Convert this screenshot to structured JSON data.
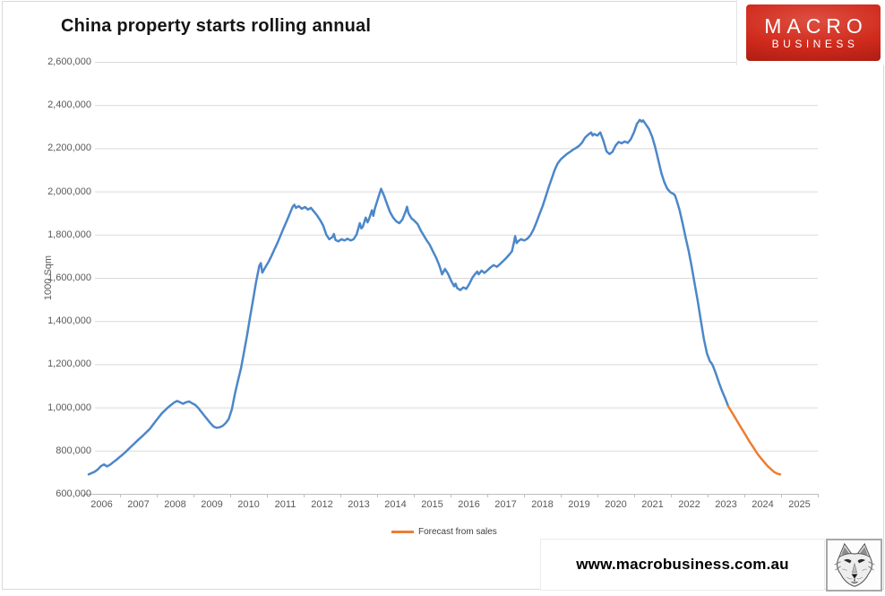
{
  "title": "China property starts rolling annual",
  "logo": {
    "line1": "MACRO",
    "line2": "BUSINESS",
    "bg_color": "#d02a1c"
  },
  "footer": {
    "url": "www.macrobusiness.com.au",
    "wolf_logo": "wolf-head-sketch"
  },
  "legend": {
    "label": "Forecast from sales",
    "color": "#ED7D31"
  },
  "colors": {
    "actual_line": "#4C87C9",
    "forecast_line": "#ED7D31",
    "gridline": "#d9d9d9",
    "axis_line": "#bfbfbf",
    "tick_text": "#595959",
    "logo_red": "#d02a1c"
  },
  "chart_data": {
    "type": "line",
    "title": "China property starts rolling annual",
    "xlabel": "",
    "ylabel": "1000 Sqm",
    "ylim": [
      600000,
      2600000
    ],
    "xlim": [
      2006,
      2025
    ],
    "grid": true,
    "legend_position": "bottom-center",
    "y_ticks": [
      600000,
      800000,
      1000000,
      1200000,
      1400000,
      1600000,
      1800000,
      2000000,
      2200000,
      2400000,
      2600000
    ],
    "x_ticks": [
      "2006",
      "2007",
      "2008",
      "2009",
      "2010",
      "2011",
      "2012",
      "2013",
      "2014",
      "2015",
      "2016",
      "2017",
      "2018",
      "2019",
      "2020",
      "2021",
      "2022",
      "2023",
      "2024",
      "2025"
    ],
    "series": [
      {
        "name": "China property starts rolling annual (actual)",
        "color": "#4C87C9",
        "points": [
          [
            2006.0,
            690000
          ],
          [
            2006.08,
            696000
          ],
          [
            2006.17,
            703000
          ],
          [
            2006.25,
            713000
          ],
          [
            2006.33,
            728000
          ],
          [
            2006.42,
            736000
          ],
          [
            2006.5,
            727000
          ],
          [
            2006.58,
            734000
          ],
          [
            2006.67,
            746000
          ],
          [
            2006.75,
            756000
          ],
          [
            2006.83,
            768000
          ],
          [
            2006.92,
            780000
          ],
          [
            2007.0,
            792000
          ],
          [
            2007.17,
            820000
          ],
          [
            2007.33,
            846000
          ],
          [
            2007.5,
            872000
          ],
          [
            2007.67,
            900000
          ],
          [
            2007.83,
            936000
          ],
          [
            2008.0,
            972000
          ],
          [
            2008.17,
            1000000
          ],
          [
            2008.33,
            1022000
          ],
          [
            2008.42,
            1030000
          ],
          [
            2008.5,
            1024000
          ],
          [
            2008.58,
            1017000
          ],
          [
            2008.67,
            1024000
          ],
          [
            2008.75,
            1028000
          ],
          [
            2008.83,
            1019000
          ],
          [
            2008.92,
            1011000
          ],
          [
            2009.0,
            997000
          ],
          [
            2009.17,
            961000
          ],
          [
            2009.33,
            927000
          ],
          [
            2009.42,
            911000
          ],
          [
            2009.5,
            906000
          ],
          [
            2009.58,
            908000
          ],
          [
            2009.67,
            915000
          ],
          [
            2009.75,
            928000
          ],
          [
            2009.83,
            946000
          ],
          [
            2009.92,
            992000
          ],
          [
            2010.0,
            1062000
          ],
          [
            2010.08,
            1121000
          ],
          [
            2010.17,
            1182000
          ],
          [
            2010.25,
            1256000
          ],
          [
            2010.33,
            1331000
          ],
          [
            2010.42,
            1421000
          ],
          [
            2010.5,
            1500000
          ],
          [
            2010.58,
            1581000
          ],
          [
            2010.67,
            1656000
          ],
          [
            2010.71,
            1668000
          ],
          [
            2010.75,
            1624000
          ],
          [
            2010.83,
            1648000
          ],
          [
            2010.92,
            1673000
          ],
          [
            2011.0,
            1701000
          ],
          [
            2011.08,
            1731000
          ],
          [
            2011.17,
            1763000
          ],
          [
            2011.25,
            1796000
          ],
          [
            2011.33,
            1829000
          ],
          [
            2011.42,
            1863000
          ],
          [
            2011.5,
            1896000
          ],
          [
            2011.58,
            1929000
          ],
          [
            2011.63,
            1938000
          ],
          [
            2011.67,
            1924000
          ],
          [
            2011.75,
            1932000
          ],
          [
            2011.83,
            1920000
          ],
          [
            2011.92,
            1928000
          ],
          [
            2012.0,
            1916000
          ],
          [
            2012.08,
            1924000
          ],
          [
            2012.17,
            1906000
          ],
          [
            2012.25,
            1889000
          ],
          [
            2012.33,
            1868000
          ],
          [
            2012.42,
            1841000
          ],
          [
            2012.5,
            1801000
          ],
          [
            2012.58,
            1779000
          ],
          [
            2012.67,
            1789000
          ],
          [
            2012.71,
            1803000
          ],
          [
            2012.75,
            1776000
          ],
          [
            2012.83,
            1769000
          ],
          [
            2012.92,
            1779000
          ],
          [
            2013.0,
            1773000
          ],
          [
            2013.08,
            1781000
          ],
          [
            2013.17,
            1773000
          ],
          [
            2013.25,
            1779000
          ],
          [
            2013.33,
            1801000
          ],
          [
            2013.42,
            1853000
          ],
          [
            2013.46,
            1829000
          ],
          [
            2013.5,
            1836000
          ],
          [
            2013.58,
            1879000
          ],
          [
            2013.63,
            1857000
          ],
          [
            2013.67,
            1871000
          ],
          [
            2013.75,
            1913000
          ],
          [
            2013.79,
            1887000
          ],
          [
            2013.83,
            1921000
          ],
          [
            2013.92,
            1969000
          ],
          [
            2014.0,
            2012000
          ],
          [
            2014.08,
            1981000
          ],
          [
            2014.17,
            1939000
          ],
          [
            2014.25,
            1903000
          ],
          [
            2014.33,
            1879000
          ],
          [
            2014.42,
            1861000
          ],
          [
            2014.5,
            1853000
          ],
          [
            2014.58,
            1869000
          ],
          [
            2014.67,
            1906000
          ],
          [
            2014.71,
            1929000
          ],
          [
            2014.75,
            1899000
          ],
          [
            2014.83,
            1876000
          ],
          [
            2014.92,
            1863000
          ],
          [
            2015.0,
            1849000
          ],
          [
            2015.08,
            1821000
          ],
          [
            2015.17,
            1796000
          ],
          [
            2015.25,
            1773000
          ],
          [
            2015.33,
            1753000
          ],
          [
            2015.42,
            1723000
          ],
          [
            2015.5,
            1696000
          ],
          [
            2015.58,
            1663000
          ],
          [
            2015.63,
            1639000
          ],
          [
            2015.67,
            1616000
          ],
          [
            2015.71,
            1629000
          ],
          [
            2015.75,
            1641000
          ],
          [
            2015.83,
            1619000
          ],
          [
            2015.92,
            1586000
          ],
          [
            2016.0,
            1561000
          ],
          [
            2016.04,
            1573000
          ],
          [
            2016.08,
            1553000
          ],
          [
            2016.17,
            1543000
          ],
          [
            2016.25,
            1556000
          ],
          [
            2016.33,
            1549000
          ],
          [
            2016.42,
            1573000
          ],
          [
            2016.5,
            1601000
          ],
          [
            2016.58,
            1619000
          ],
          [
            2016.63,
            1629000
          ],
          [
            2016.67,
            1616000
          ],
          [
            2016.75,
            1633000
          ],
          [
            2016.83,
            1623000
          ],
          [
            2016.92,
            1636000
          ],
          [
            2017.0,
            1649000
          ],
          [
            2017.08,
            1659000
          ],
          [
            2017.17,
            1651000
          ],
          [
            2017.25,
            1663000
          ],
          [
            2017.33,
            1676000
          ],
          [
            2017.42,
            1691000
          ],
          [
            2017.5,
            1706000
          ],
          [
            2017.58,
            1723000
          ],
          [
            2017.63,
            1759000
          ],
          [
            2017.67,
            1793000
          ],
          [
            2017.71,
            1761000
          ],
          [
            2017.75,
            1769000
          ],
          [
            2017.83,
            1779000
          ],
          [
            2017.92,
            1773000
          ],
          [
            2018.0,
            1781000
          ],
          [
            2018.08,
            1796000
          ],
          [
            2018.17,
            1823000
          ],
          [
            2018.25,
            1856000
          ],
          [
            2018.33,
            1893000
          ],
          [
            2018.42,
            1931000
          ],
          [
            2018.5,
            1973000
          ],
          [
            2018.58,
            2016000
          ],
          [
            2018.67,
            2059000
          ],
          [
            2018.75,
            2099000
          ],
          [
            2018.83,
            2129000
          ],
          [
            2018.92,
            2149000
          ],
          [
            2019.0,
            2161000
          ],
          [
            2019.08,
            2173000
          ],
          [
            2019.17,
            2183000
          ],
          [
            2019.25,
            2193000
          ],
          [
            2019.33,
            2201000
          ],
          [
            2019.42,
            2211000
          ],
          [
            2019.5,
            2226000
          ],
          [
            2019.58,
            2249000
          ],
          [
            2019.67,
            2263000
          ],
          [
            2019.75,
            2273000
          ],
          [
            2019.79,
            2259000
          ],
          [
            2019.83,
            2266000
          ],
          [
            2019.92,
            2259000
          ],
          [
            2020.0,
            2273000
          ],
          [
            2020.08,
            2236000
          ],
          [
            2020.17,
            2186000
          ],
          [
            2020.25,
            2173000
          ],
          [
            2020.33,
            2183000
          ],
          [
            2020.42,
            2213000
          ],
          [
            2020.5,
            2229000
          ],
          [
            2020.58,
            2223000
          ],
          [
            2020.67,
            2231000
          ],
          [
            2020.75,
            2225000
          ],
          [
            2020.83,
            2241000
          ],
          [
            2020.92,
            2273000
          ],
          [
            2021.0,
            2313000
          ],
          [
            2021.08,
            2331000
          ],
          [
            2021.13,
            2323000
          ],
          [
            2021.17,
            2329000
          ],
          [
            2021.25,
            2309000
          ],
          [
            2021.33,
            2289000
          ],
          [
            2021.42,
            2253000
          ],
          [
            2021.5,
            2206000
          ],
          [
            2021.58,
            2149000
          ],
          [
            2021.67,
            2086000
          ],
          [
            2021.75,
            2043000
          ],
          [
            2021.83,
            2013000
          ],
          [
            2021.92,
            1996000
          ],
          [
            2022.0,
            1989000
          ],
          [
            2022.04,
            1983000
          ],
          [
            2022.08,
            1963000
          ],
          [
            2022.17,
            1913000
          ],
          [
            2022.25,
            1853000
          ],
          [
            2022.33,
            1789000
          ],
          [
            2022.42,
            1723000
          ],
          [
            2022.5,
            1651000
          ],
          [
            2022.58,
            1573000
          ],
          [
            2022.67,
            1489000
          ],
          [
            2022.75,
            1403000
          ],
          [
            2022.83,
            1319000
          ],
          [
            2022.92,
            1249000
          ],
          [
            2023.0,
            1213000
          ],
          [
            2023.04,
            1206000
          ],
          [
            2023.08,
            1193000
          ],
          [
            2023.17,
            1153000
          ],
          [
            2023.25,
            1113000
          ],
          [
            2023.33,
            1076000
          ],
          [
            2023.42,
            1041000
          ],
          [
            2023.5,
            1006000
          ]
        ]
      },
      {
        "name": "Forecast from sales",
        "color": "#ED7D31",
        "points": [
          [
            2023.5,
            1006000
          ],
          [
            2023.58,
            982000
          ],
          [
            2023.67,
            958000
          ],
          [
            2023.75,
            935000
          ],
          [
            2023.83,
            912000
          ],
          [
            2023.92,
            888000
          ],
          [
            2024.0,
            865000
          ],
          [
            2024.08,
            842000
          ],
          [
            2024.17,
            820000
          ],
          [
            2024.25,
            798000
          ],
          [
            2024.33,
            778000
          ],
          [
            2024.42,
            760000
          ],
          [
            2024.5,
            744000
          ],
          [
            2024.58,
            728000
          ],
          [
            2024.67,
            714000
          ],
          [
            2024.75,
            702000
          ],
          [
            2024.83,
            694000
          ],
          [
            2024.92,
            690000
          ]
        ]
      }
    ]
  }
}
